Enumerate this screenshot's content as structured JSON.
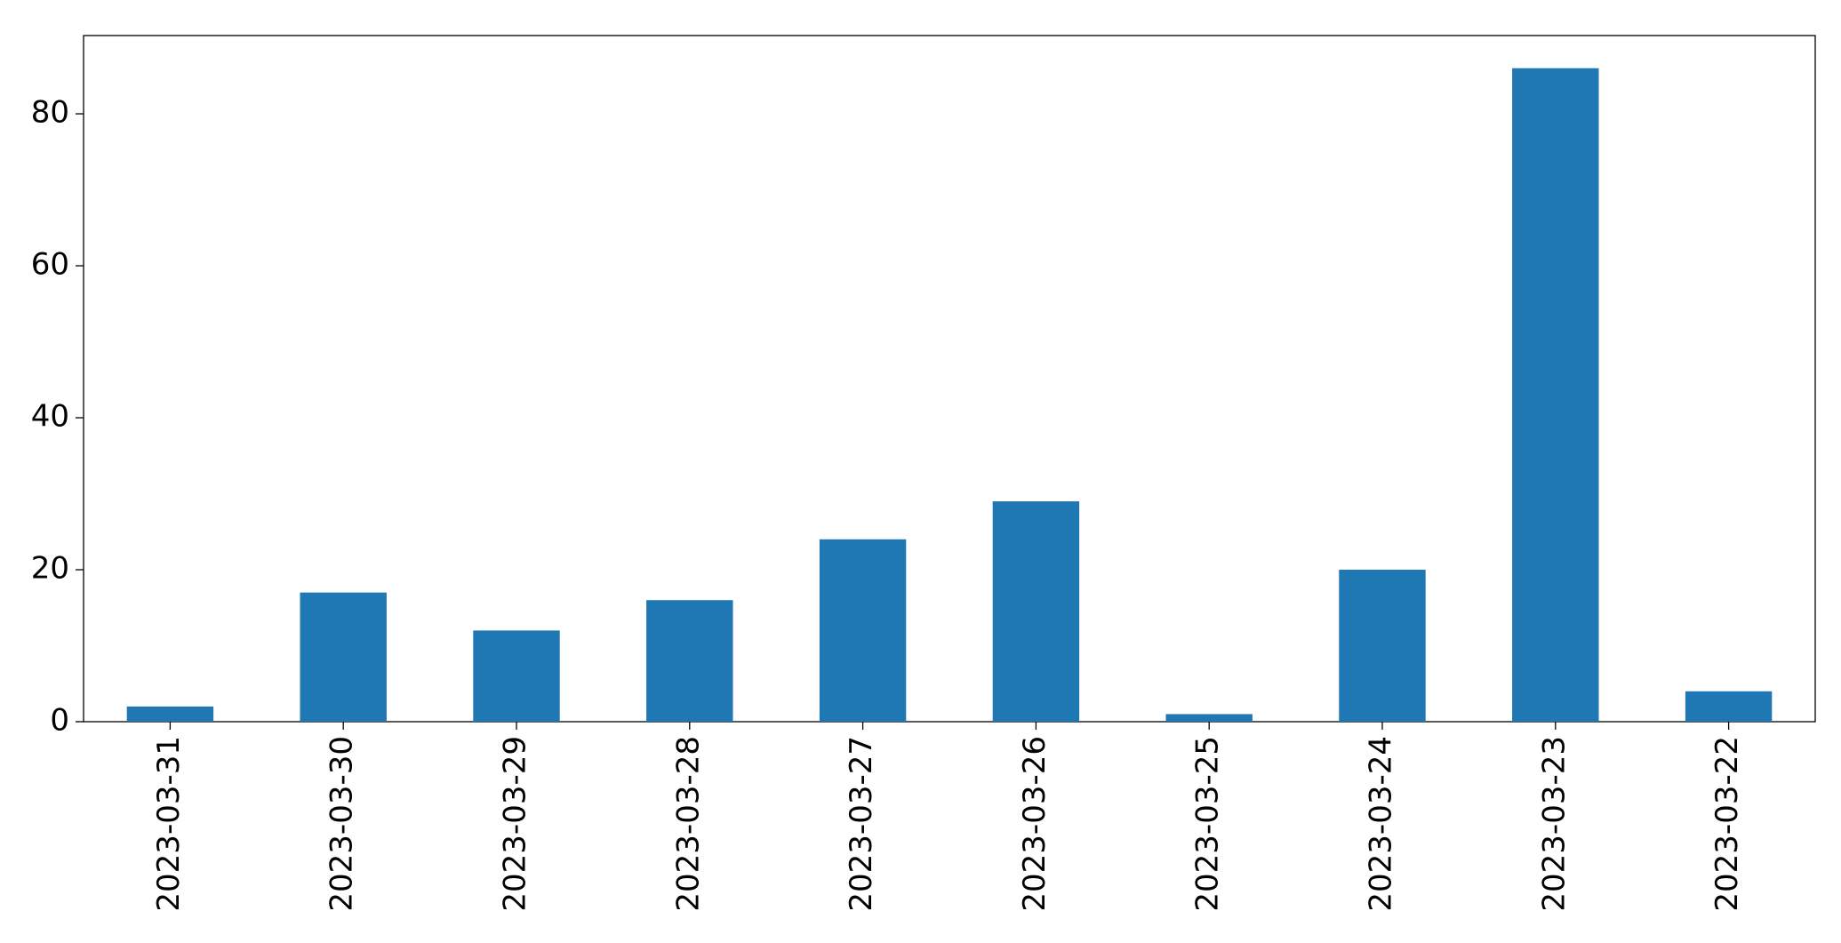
{
  "chart_data": {
    "type": "bar",
    "categories": [
      "2023-03-31",
      "2023-03-30",
      "2023-03-29",
      "2023-03-28",
      "2023-03-27",
      "2023-03-26",
      "2023-03-25",
      "2023-03-24",
      "2023-03-23",
      "2023-03-22"
    ],
    "values": [
      2,
      17,
      12,
      16,
      24,
      29,
      1,
      20,
      86,
      4
    ],
    "color": "#1f77b4",
    "ylim": [
      0,
      90.3
    ],
    "yticks": [
      0,
      20,
      40,
      60,
      80
    ],
    "grid": false
  }
}
